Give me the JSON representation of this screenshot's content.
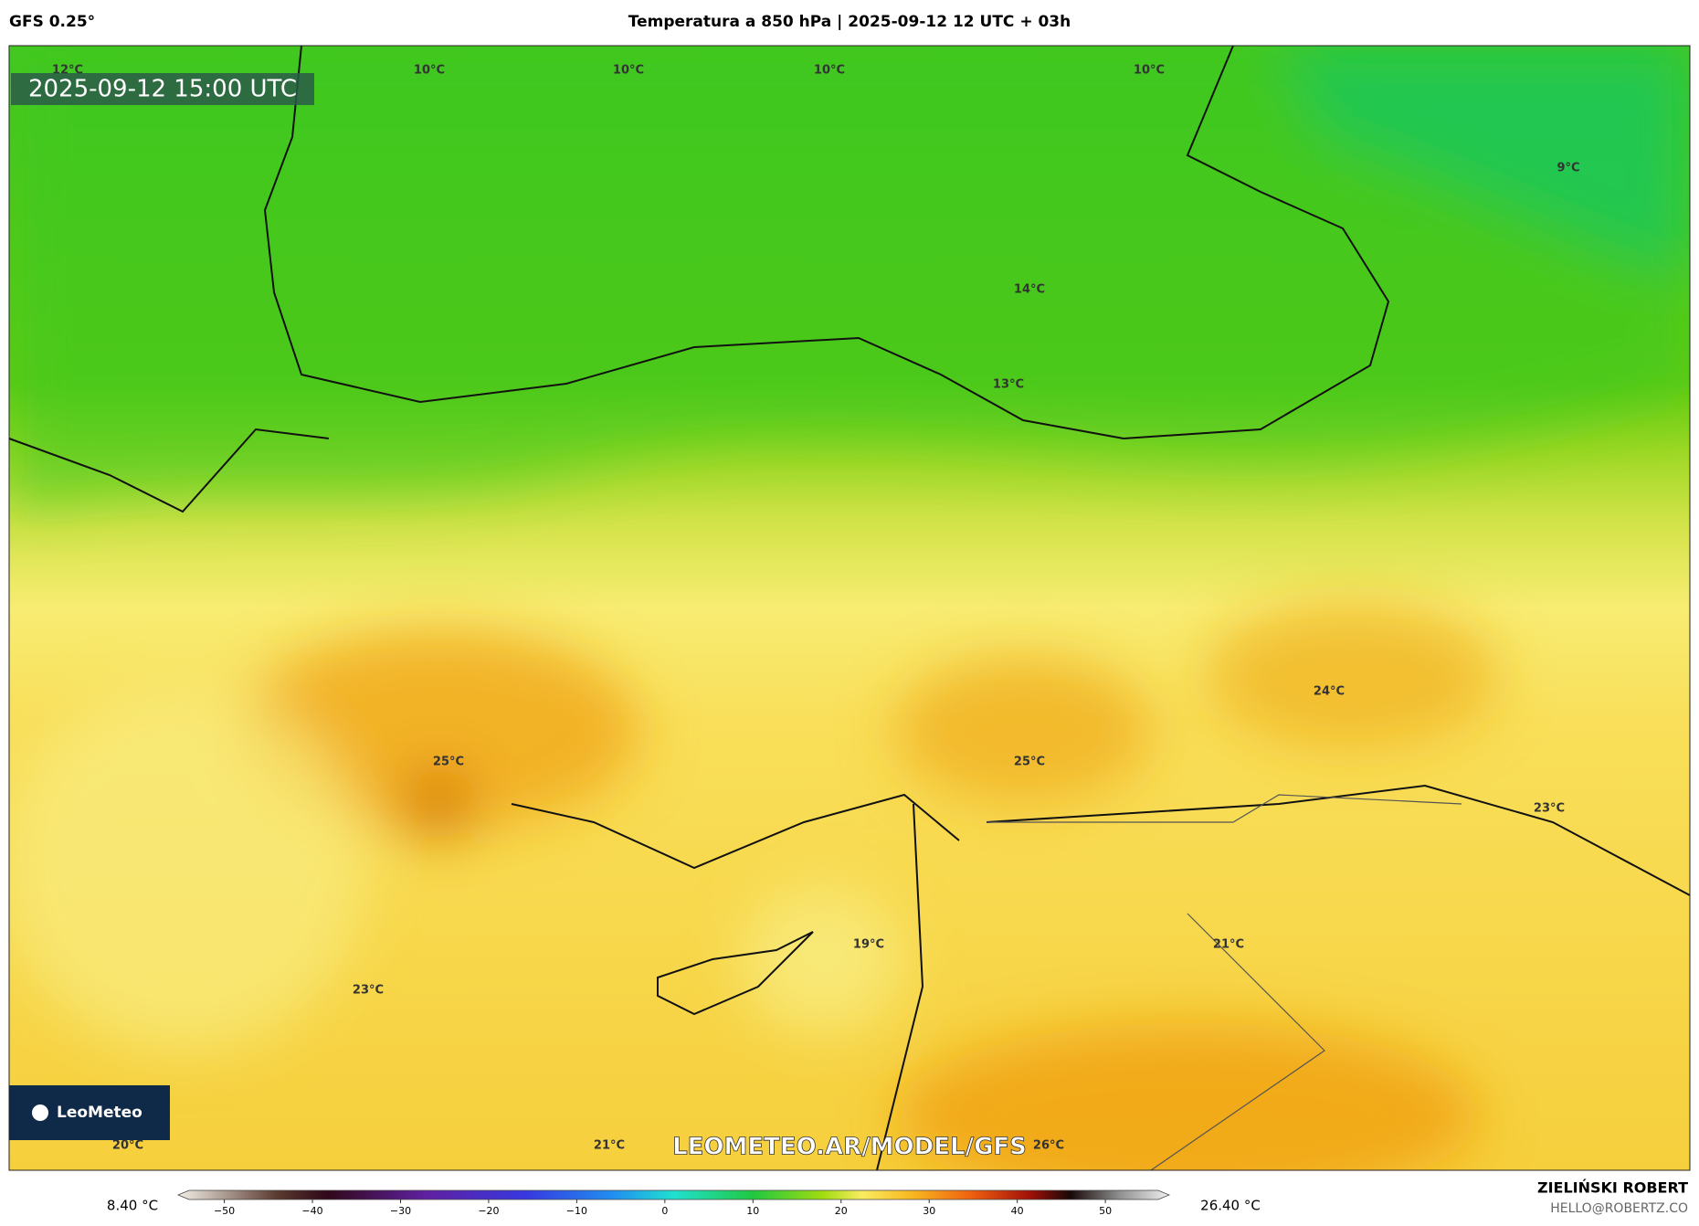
{
  "header": {
    "model": "GFS 0.25°",
    "title": "Temperatura a 850 hPa | 2025-09-12 12 UTC + 03h"
  },
  "map": {
    "timestamp": "2025-09-12 15:00 UTC",
    "logo": "LeoMeteo",
    "watermark": "LEOMETEO.AR/MODEL/GFS",
    "labels": [
      "12°C",
      "10°C",
      "10°C",
      "10°C",
      "10°C",
      "9°C",
      "14°C",
      "13°C",
      "24°C",
      "25°C",
      "25°C",
      "23°C",
      "19°C",
      "21°C",
      "23°C",
      "20°C",
      "21°C",
      "26°C"
    ]
  },
  "colorbar": {
    "min_label": "8.40 °C",
    "max_label": "26.40 °C",
    "lim": [
      -54,
      56
    ],
    "ticks": [
      {
        "value": -50,
        "label": "−50"
      },
      {
        "value": -40,
        "label": "−40"
      },
      {
        "value": -30,
        "label": "−30"
      },
      {
        "value": -20,
        "label": "−20"
      },
      {
        "value": -10,
        "label": "−10"
      },
      0,
      10,
      20,
      30,
      40,
      50
    ]
  },
  "footer": {
    "author": "ZIELIŃSKI ROBERT",
    "email": "HELLO@ROBERTZ.CO"
  }
}
